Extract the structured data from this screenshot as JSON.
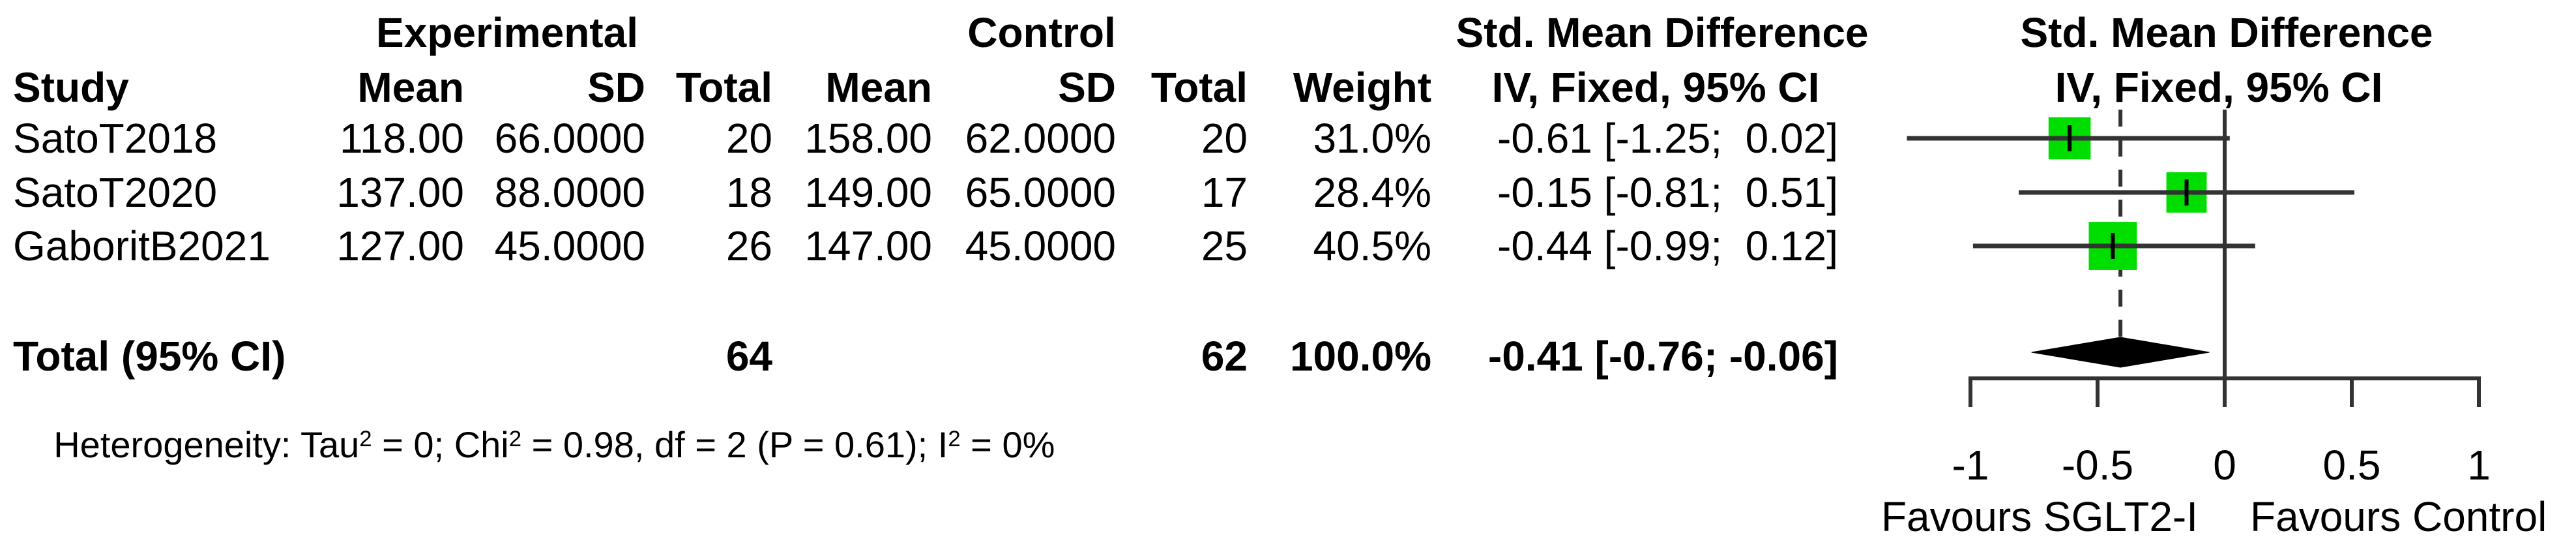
{
  "table": {
    "group_headers": {
      "experimental": "Experimental",
      "control": "Control",
      "smd_text_col": "Std. Mean Difference",
      "smd_plot_col": "Std. Mean Difference"
    },
    "col_headers": {
      "study": "Study",
      "mean_exp": "Mean",
      "sd_exp": "SD",
      "total_exp": "Total",
      "mean_ctl": "Mean",
      "sd_ctl": "SD",
      "total_ctl": "Total",
      "weight": "Weight",
      "iv_text_col": "IV, Fixed, 95% CI",
      "iv_plot_col": "IV, Fixed, 95% CI"
    },
    "rows": [
      {
        "study": "SatoT2018",
        "mean_exp": "118.00",
        "sd_exp": "66.0000",
        "total_exp": "20",
        "mean_ctl": "158.00",
        "sd_ctl": "62.0000",
        "total_ctl": "20",
        "weight": "31.0%",
        "smd_ci": "-0.61 [-1.25;  0.02]"
      },
      {
        "study": "SatoT2020",
        "mean_exp": "137.00",
        "sd_exp": "88.0000",
        "total_exp": "18",
        "mean_ctl": "149.00",
        "sd_ctl": "65.0000",
        "total_ctl": "17",
        "weight": "28.4%",
        "smd_ci": "-0.15 [-0.81;  0.51]"
      },
      {
        "study": "GaboritB2021",
        "mean_exp": "127.00",
        "sd_exp": "45.0000",
        "total_exp": "26",
        "mean_ctl": "147.00",
        "sd_ctl": "45.0000",
        "total_ctl": "25",
        "weight": "40.5%",
        "smd_ci": "-0.44 [-0.99;  0.12]"
      }
    ],
    "total_row": {
      "label": "Total (95% CI)",
      "total_exp": "64",
      "total_ctl": "62",
      "weight": "100.0%",
      "smd_ci": "-0.41 [-0.76; -0.06]"
    },
    "heterogeneity": {
      "p1": "Heterogeneity: Tau",
      "sup1": "2",
      "p2": " = 0; Chi",
      "sup2": "2",
      "p3": " = 0.98, df = 2 (P = 0.61); I",
      "sup3": "2",
      "p4": " = 0%"
    }
  },
  "axis": {
    "ticks": [
      "-1",
      "-0.5",
      "0",
      "0.5",
      "1"
    ],
    "favours_left": "Favours SGLT2-I",
    "favours_right": "Favours Control"
  },
  "chart_data": {
    "type": "forest",
    "title": "Std. Mean Difference, IV, Fixed, 95% CI",
    "xlim": [
      -1,
      1
    ],
    "x_ticks": [
      -1,
      -0.5,
      0,
      0.5,
      1
    ],
    "null_line": 0,
    "pooled_dashed_line": -0.41,
    "studies": [
      {
        "name": "SatoT2018",
        "smd": -0.61,
        "ci_low": -1.25,
        "ci_high": 0.02,
        "weight_pct": 31.0
      },
      {
        "name": "SatoT2020",
        "smd": -0.15,
        "ci_low": -0.81,
        "ci_high": 0.51,
        "weight_pct": 28.4
      },
      {
        "name": "GaboritB2021",
        "smd": -0.44,
        "ci_low": -0.99,
        "ci_high": 0.12,
        "weight_pct": 40.5
      }
    ],
    "pooled": {
      "label": "Total (95% CI)",
      "smd": -0.41,
      "ci_low": -0.76,
      "ci_high": -0.06,
      "weight_pct": 100.0
    },
    "marker_color": "#00DE00",
    "line_color": "#333333",
    "diamond_color": "#000000"
  }
}
